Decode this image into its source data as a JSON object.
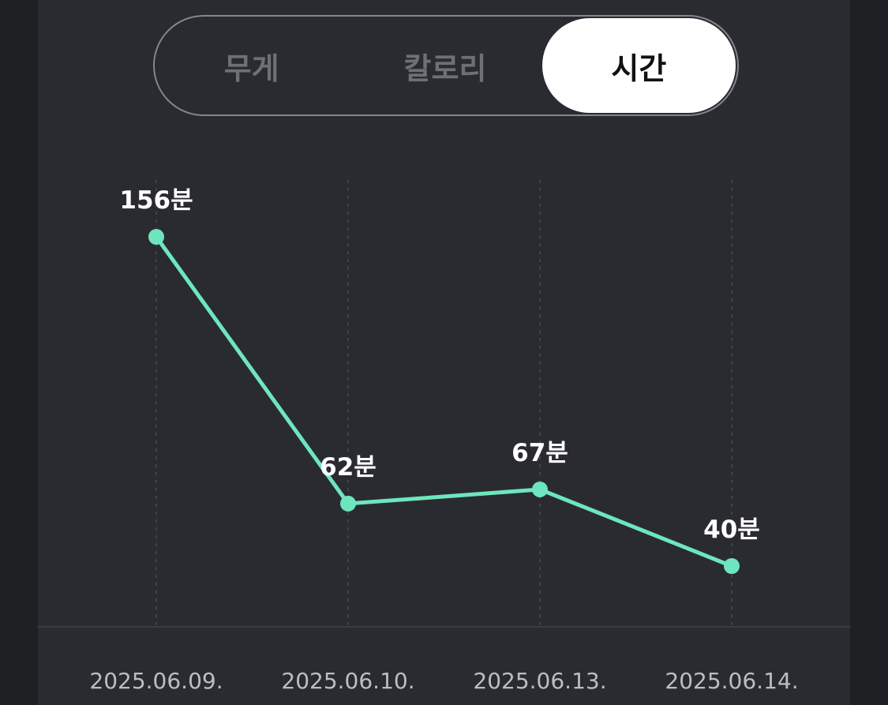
{
  "tabs": [
    {
      "label": "무게",
      "active": false
    },
    {
      "label": "칼로리",
      "active": false
    },
    {
      "label": "시간",
      "active": true
    }
  ],
  "colors": {
    "line": "#6ee6bd",
    "background": "#2a2b31",
    "page": "#1f2024",
    "active_tab": "#ffffff"
  },
  "chart_data": {
    "type": "line",
    "categories": [
      "2025.06.09.",
      "2025.06.10.",
      "2025.06.13.",
      "2025.06.14."
    ],
    "values": [
      156,
      62,
      67,
      40
    ],
    "value_labels": [
      "156분",
      "62분",
      "67분",
      "40분"
    ],
    "ylim": [
      0,
      180
    ],
    "grid": "vertical-dotted"
  }
}
